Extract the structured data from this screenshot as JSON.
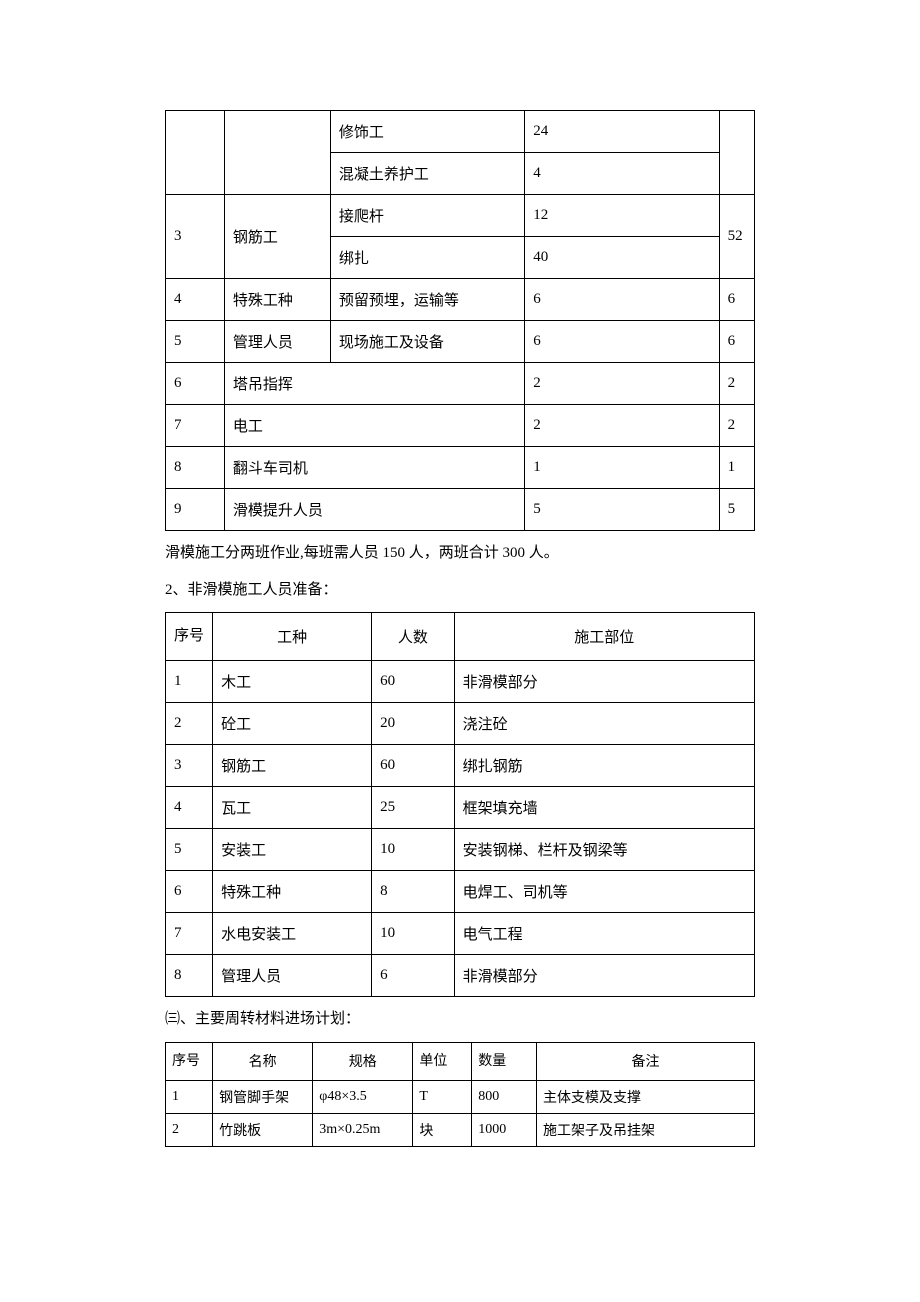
{
  "table1": {
    "rows": [
      {
        "seq": "",
        "type": "",
        "sub": "修饰工",
        "count": "24",
        "total": ""
      },
      {
        "seq": "",
        "type": "",
        "sub": "混凝土养护工",
        "count": "4",
        "total": ""
      },
      {
        "seq": "3",
        "type": "钢筋工",
        "sub": "接爬杆",
        "count": "12",
        "total": "52",
        "rowspan_seq": 2,
        "rowspan_type": 2,
        "rowspan_total": 2
      },
      {
        "seq": "",
        "type": "",
        "sub": "绑扎",
        "count": "40",
        "total": ""
      },
      {
        "seq": "4",
        "type": "特殊工种",
        "sub": "预留预埋，运输等",
        "count": "6",
        "total": "6"
      },
      {
        "seq": "5",
        "type": "管理人员",
        "sub": "现场施工及设备",
        "count": "6",
        "total": "6"
      },
      {
        "seq": "6",
        "type": "塔吊指挥",
        "sub": "",
        "count": "2",
        "total": "2",
        "colspan_type": 2
      },
      {
        "seq": "7",
        "type": "电工",
        "sub": "",
        "count": "2",
        "total": "2",
        "colspan_type": 2
      },
      {
        "seq": "8",
        "type": "翻斗车司机",
        "sub": "",
        "count": "1",
        "total": "1",
        "colspan_type": 2
      },
      {
        "seq": "9",
        "type": "滑模提升人员",
        "sub": "",
        "count": "5",
        "total": "5",
        "colspan_type": 2
      }
    ]
  },
  "note1": "滑模施工分两班作业,每班需人员 150 人，两班合计 300 人。",
  "heading2": "2、非滑模施工人员准备：",
  "table2": {
    "headers": {
      "seq": "序号",
      "type": "工种",
      "count": "人数",
      "part": "施工部位"
    },
    "rows": [
      {
        "seq": "1",
        "type": "木工",
        "count": "60",
        "part": "非滑模部分"
      },
      {
        "seq": "2",
        "type": "砼工",
        "count": "20",
        "part": "浇注砼"
      },
      {
        "seq": "3",
        "type": "钢筋工",
        "count": "60",
        "part": "绑扎钢筋"
      },
      {
        "seq": "4",
        "type": "瓦工",
        "count": "25",
        "part": "框架填充墙"
      },
      {
        "seq": "5",
        "type": "安装工",
        "count": "10",
        "part": "安装钢梯、栏杆及钢梁等"
      },
      {
        "seq": "6",
        "type": "特殊工种",
        "count": "8",
        "part": "电焊工、司机等"
      },
      {
        "seq": "7",
        "type": "水电安装工",
        "count": "10",
        "part": "电气工程"
      },
      {
        "seq": "8",
        "type": "管理人员",
        "count": "6",
        "part": "非滑模部分"
      }
    ]
  },
  "heading3": "㈢、主要周转材料进场计划：",
  "table3": {
    "headers": {
      "seq": "序号",
      "name": "名称",
      "spec": "规格",
      "unit": "单位",
      "qty": "数量",
      "note": "备注"
    },
    "rows": [
      {
        "seq": "1",
        "name": "钢管脚手架",
        "spec": "φ48×3.5",
        "unit": "T",
        "qty": "800",
        "note": "主体支模及支撑"
      },
      {
        "seq": "2",
        "name": "竹跳板",
        "spec": "3m×0.25m",
        "unit": "块",
        "qty": "1000",
        "note": "施工架子及吊挂架"
      }
    ]
  }
}
